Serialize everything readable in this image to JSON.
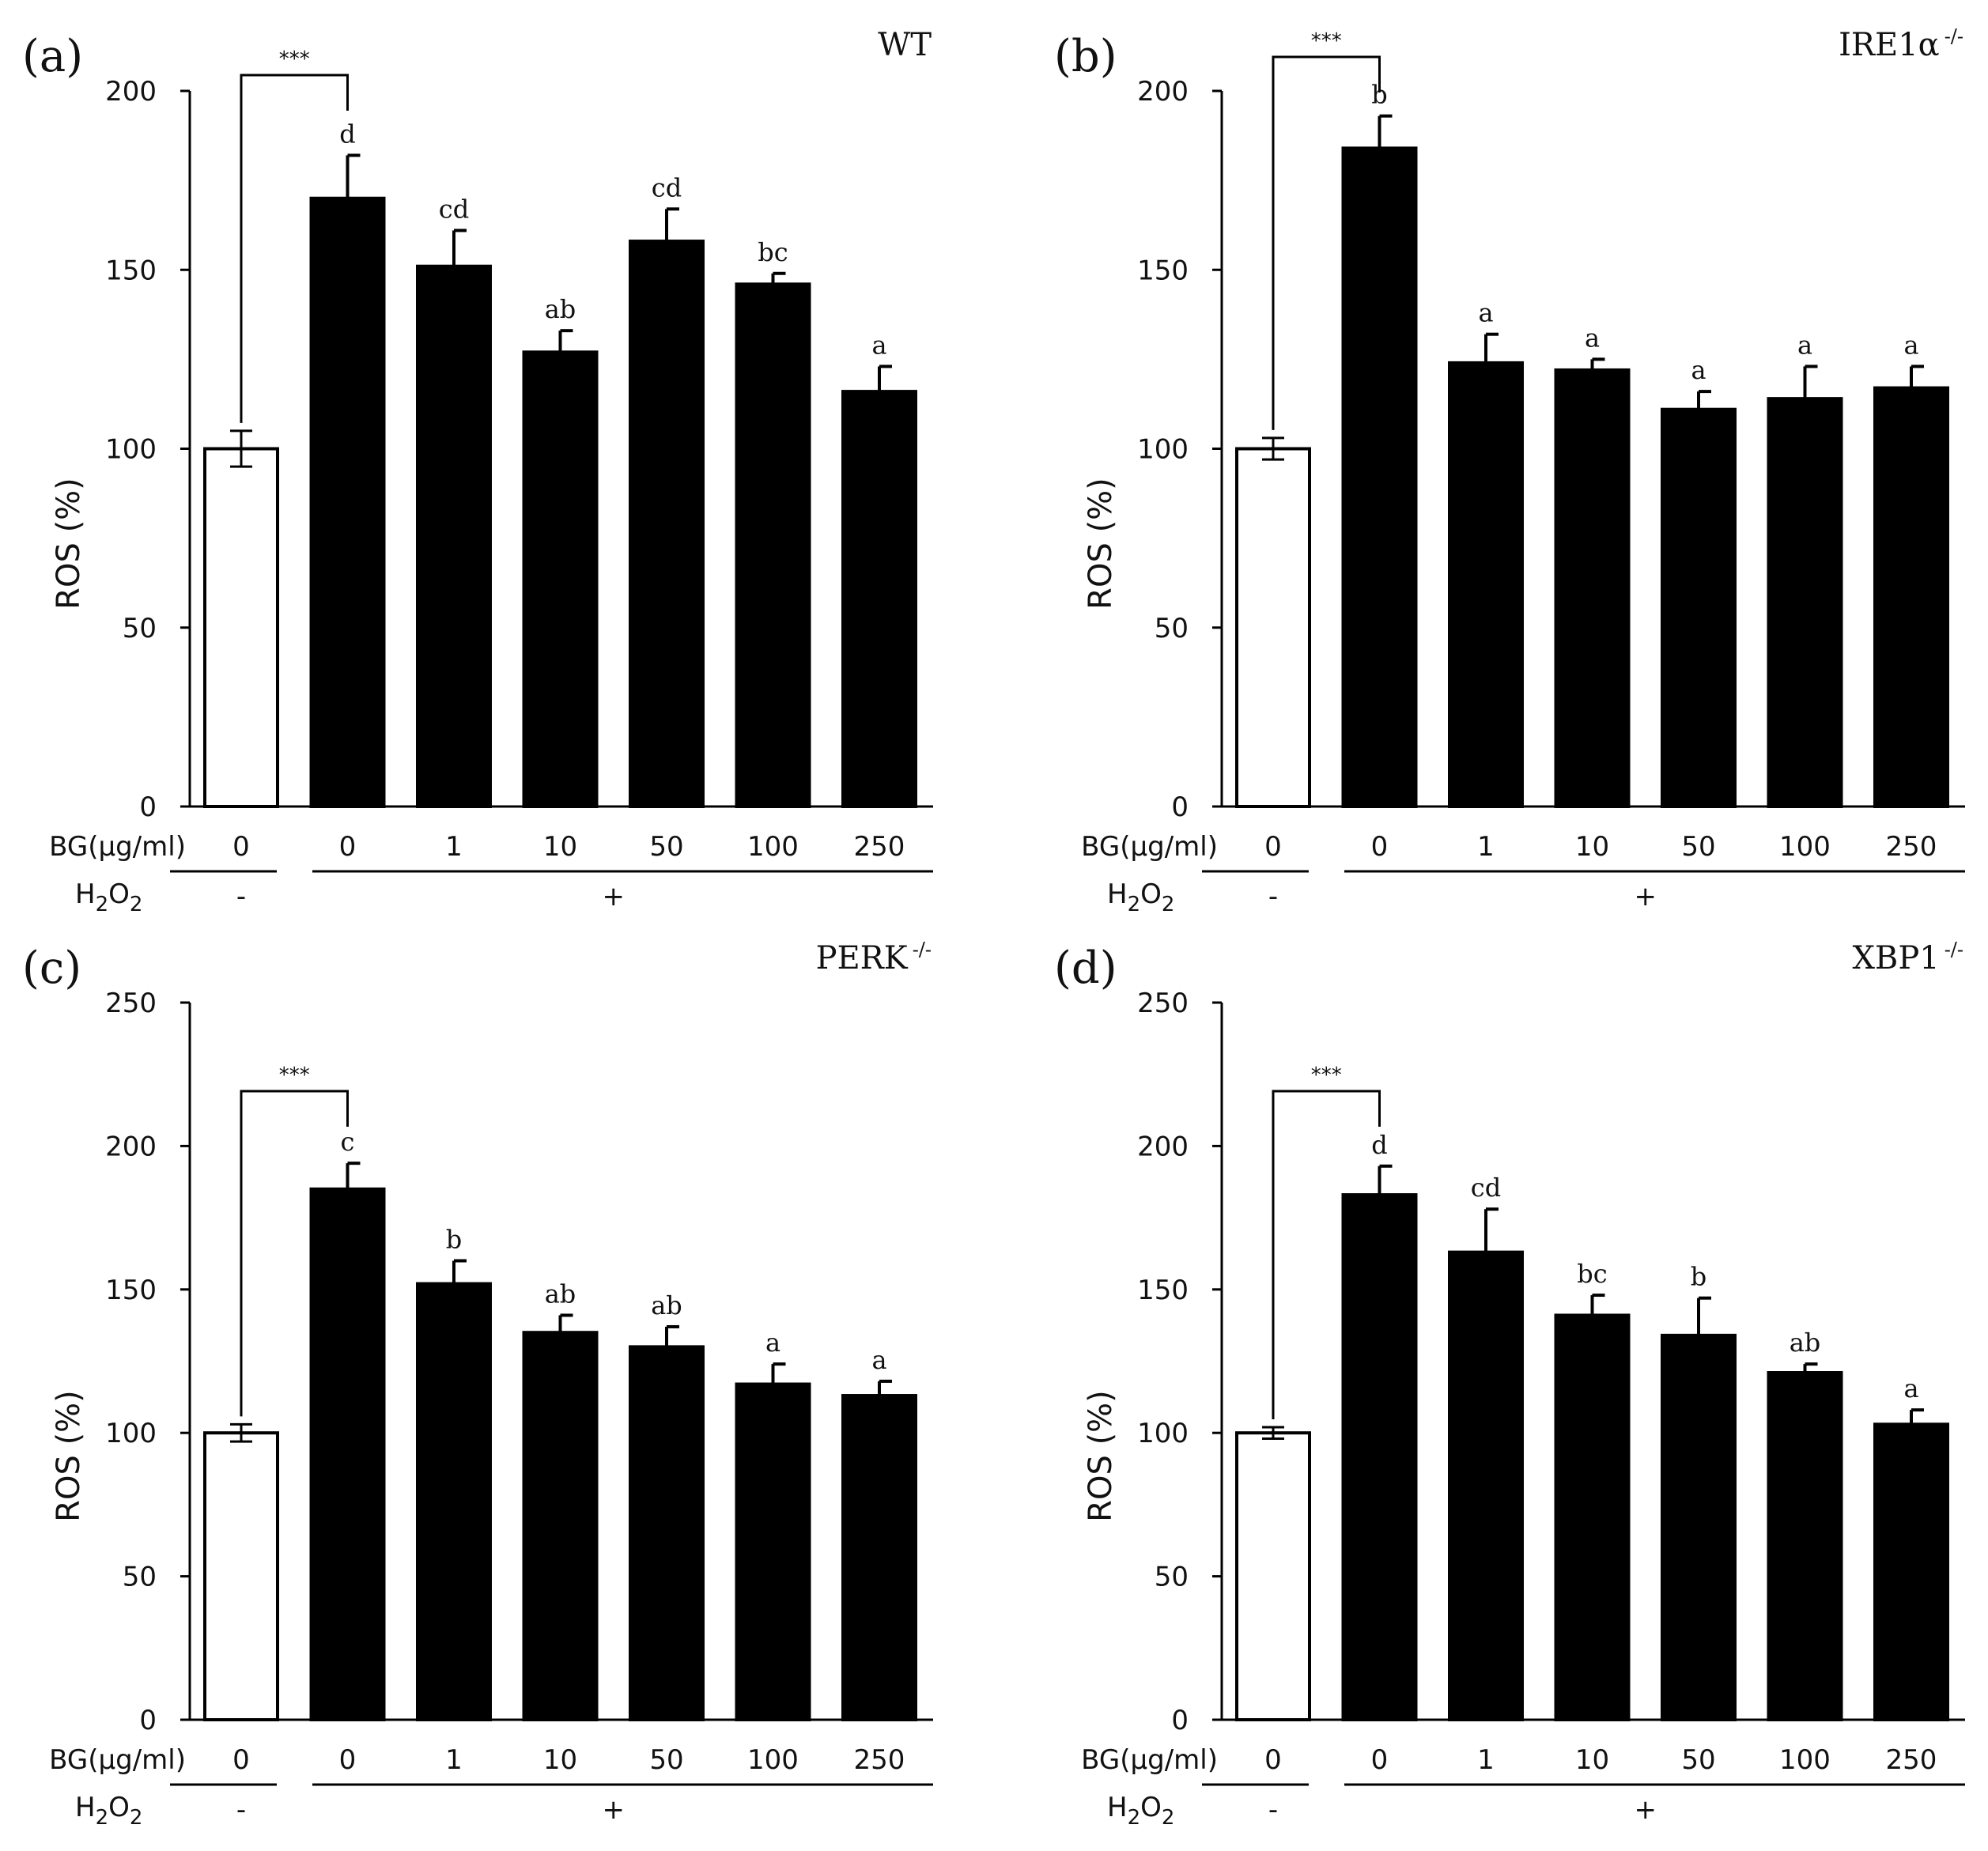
{
  "figure": {
    "y_axis_label": "ROS (%)",
    "row1_label": "BG(μg/ml)",
    "row2_label": "H2O2",
    "control_sign": "-",
    "treated_sign": "+",
    "significance_label": "***"
  },
  "chart_data": [
    {
      "type": "bar",
      "panel_label": "(a)",
      "title": "WT",
      "title_superscript": "",
      "xlabel": "BG(μg/ml)",
      "ylabel": "ROS (%)",
      "ylim": [
        0,
        200
      ],
      "yticks": [
        0,
        50,
        100,
        150,
        200
      ],
      "categories": [
        "0",
        "0",
        "1",
        "10",
        "50",
        "100",
        "250"
      ],
      "h2o2": [
        "-",
        "+",
        "+",
        "+",
        "+",
        "+",
        "+"
      ],
      "values": [
        100,
        170,
        151,
        127,
        158,
        146,
        116
      ],
      "errors": [
        5,
        12,
        10,
        6,
        9,
        3,
        7
      ],
      "letters": [
        "",
        "d",
        "cd",
        "ab",
        "cd",
        "bc",
        "a"
      ],
      "fill_colors": [
        "#ffffff",
        "#000000",
        "#000000",
        "#000000",
        "#000000",
        "#000000",
        "#000000"
      ],
      "significance": {
        "from": 0,
        "to": 1,
        "label": "***"
      }
    },
    {
      "type": "bar",
      "panel_label": "(b)",
      "title": "IRE1α",
      "title_superscript": "-/-",
      "xlabel": "BG(μg/ml)",
      "ylabel": "ROS (%)",
      "ylim": [
        0,
        200
      ],
      "yticks": [
        0,
        50,
        100,
        150,
        200
      ],
      "categories": [
        "0",
        "0",
        "1",
        "10",
        "50",
        "100",
        "250"
      ],
      "h2o2": [
        "-",
        "+",
        "+",
        "+",
        "+",
        "+",
        "+"
      ],
      "values": [
        100,
        184,
        124,
        122,
        111,
        114,
        117
      ],
      "errors": [
        3,
        9,
        8,
        3,
        5,
        9,
        6
      ],
      "letters": [
        "",
        "b",
        "a",
        "a",
        "a",
        "a",
        "a"
      ],
      "fill_colors": [
        "#ffffff",
        "#000000",
        "#000000",
        "#000000",
        "#000000",
        "#000000",
        "#000000"
      ],
      "significance": {
        "from": 0,
        "to": 1,
        "label": "***"
      }
    },
    {
      "type": "bar",
      "panel_label": "(c)",
      "title": "PERK",
      "title_superscript": "-/-",
      "xlabel": "BG(μg/ml)",
      "ylabel": "ROS (%)",
      "ylim": [
        0,
        250
      ],
      "yticks": [
        0,
        50,
        100,
        150,
        200,
        250
      ],
      "categories": [
        "0",
        "0",
        "1",
        "10",
        "50",
        "100",
        "250"
      ],
      "h2o2": [
        "-",
        "+",
        "+",
        "+",
        "+",
        "+",
        "+"
      ],
      "values": [
        100,
        185,
        152,
        135,
        130,
        117,
        113
      ],
      "errors": [
        3,
        9,
        8,
        6,
        7,
        7,
        5
      ],
      "letters": [
        "",
        "c",
        "b",
        "ab",
        "ab",
        "a",
        "a"
      ],
      "fill_colors": [
        "#ffffff",
        "#000000",
        "#000000",
        "#000000",
        "#000000",
        "#000000",
        "#000000"
      ],
      "significance": {
        "from": 0,
        "to": 1,
        "label": "***"
      }
    },
    {
      "type": "bar",
      "panel_label": "(d)",
      "title": "XBP1",
      "title_superscript": "-/-",
      "xlabel": "BG(μg/ml)",
      "ylabel": "ROS (%)",
      "ylim": [
        0,
        250
      ],
      "yticks": [
        0,
        50,
        100,
        150,
        200,
        250
      ],
      "categories": [
        "0",
        "0",
        "1",
        "10",
        "50",
        "100",
        "250"
      ],
      "h2o2": [
        "-",
        "+",
        "+",
        "+",
        "+",
        "+",
        "+"
      ],
      "values": [
        100,
        183,
        163,
        141,
        134,
        121,
        103
      ],
      "errors": [
        2,
        10,
        15,
        7,
        13,
        3,
        5
      ],
      "letters": [
        "",
        "d",
        "cd",
        "bc",
        "b",
        "ab",
        "a"
      ],
      "fill_colors": [
        "#ffffff",
        "#000000",
        "#000000",
        "#000000",
        "#000000",
        "#000000",
        "#000000"
      ],
      "significance": {
        "from": 0,
        "to": 1,
        "label": "***"
      }
    }
  ]
}
